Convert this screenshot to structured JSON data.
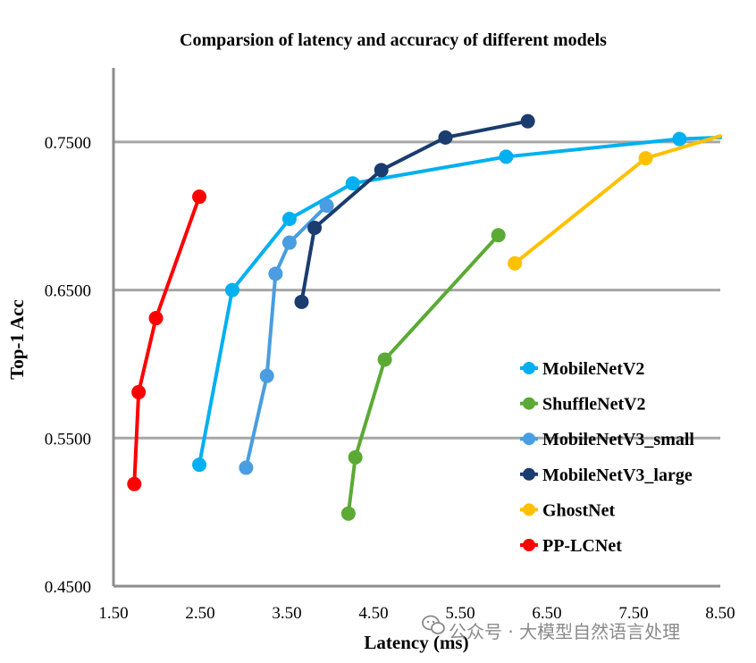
{
  "chart_data": {
    "type": "line",
    "title": "Comparsion of latency and accuracy of different models",
    "xlabel": "Latency (ms)",
    "ylabel": "Top-1 Acc",
    "xlim": [
      1.5,
      8.5
    ],
    "ylim": [
      0.45,
      0.8
    ],
    "x_ticks": [
      "1.50",
      "2.50",
      "3.50",
      "4.50",
      "5.50",
      "6.50",
      "7.50",
      "8.50"
    ],
    "x_tick_values": [
      1.5,
      2.5,
      3.5,
      4.5,
      5.5,
      6.5,
      7.5,
      8.5
    ],
    "y_ticks": [
      "0.4500",
      "0.5500",
      "0.6500",
      "0.7500"
    ],
    "y_tick_values": [
      0.45,
      0.55,
      0.65,
      0.75
    ],
    "grid": "horizontal",
    "legend_position": "right",
    "series": [
      {
        "name": "MobileNetV2",
        "color": "#00b0f0",
        "points": [
          [
            2.49,
            0.532
          ],
          [
            2.87,
            0.65
          ],
          [
            3.53,
            0.698
          ],
          [
            4.26,
            0.722
          ],
          [
            6.03,
            0.74
          ],
          [
            8.03,
            0.752
          ]
        ],
        "tail": [
          8.5,
          0.753
        ]
      },
      {
        "name": "ShuffleNetV2",
        "color": "#5aaa35",
        "points": [
          [
            4.21,
            0.499
          ],
          [
            4.29,
            0.537
          ],
          [
            4.63,
            0.603
          ],
          [
            5.94,
            0.687
          ]
        ]
      },
      {
        "name": "MobileNetV3_small",
        "color": "#4a9de0",
        "points": [
          [
            3.03,
            0.53
          ],
          [
            3.27,
            0.592
          ],
          [
            3.37,
            0.661
          ],
          [
            3.53,
            0.682
          ],
          [
            3.96,
            0.707
          ]
        ]
      },
      {
        "name": "MobileNetV3_large",
        "color": "#1a3c6e",
        "points": [
          [
            3.67,
            0.642
          ],
          [
            3.82,
            0.692
          ],
          [
            4.59,
            0.731
          ],
          [
            5.33,
            0.753
          ],
          [
            6.28,
            0.764
          ]
        ]
      },
      {
        "name": "GhostNet",
        "color": "#ffc000",
        "points": [
          [
            6.13,
            0.668
          ],
          [
            7.64,
            0.739
          ]
        ],
        "tail": [
          8.5,
          0.754
        ]
      },
      {
        "name": "PP-LCNet",
        "color": "#ff0000",
        "points": [
          [
            1.74,
            0.519
          ],
          [
            1.79,
            0.581
          ],
          [
            1.99,
            0.631
          ],
          [
            2.49,
            0.713
          ]
        ]
      }
    ]
  },
  "watermark": {
    "text": "公众号 · 大模型自然语言处理",
    "icon": "wechat-icon"
  },
  "colors": {
    "axis": "#8c8c8c",
    "grid": "#a6a6a6"
  }
}
